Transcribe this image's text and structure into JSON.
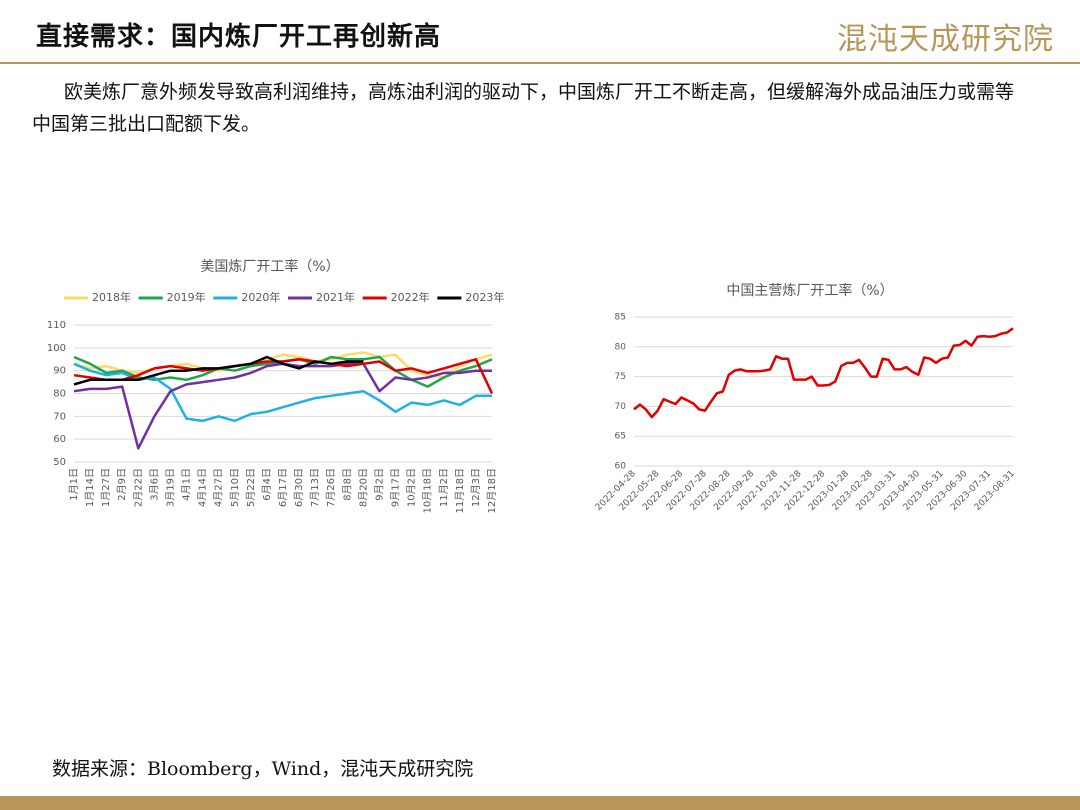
{
  "header": {
    "title": "直接需求：国内炼厂开工再创新高",
    "logo": "混沌天成研究院"
  },
  "body": {
    "paragraph": "欧美炼厂意外频发导致高利润维持，高炼油利润的驱动下，中国炼厂开工不断走高，但缓解海外成品油压力或需等中国第三批出口配额下发。"
  },
  "source": "数据来源：Bloomberg，Wind，混沌天成研究院",
  "chart_data": [
    {
      "type": "line",
      "title": "美国炼厂开工率（%）",
      "categories": [
        "1月1日",
        "1月14日",
        "1月27日",
        "2月9日",
        "2月22日",
        "3月6日",
        "3月19日",
        "4月1日",
        "4月14日",
        "4月27日",
        "5月10日",
        "5月22日",
        "6月4日",
        "6月17日",
        "6月30日",
        "7月13日",
        "7月26日",
        "8月8日",
        "8月20日",
        "9月2日",
        "9月17日",
        "10月2日",
        "10月18日",
        "11月2日",
        "11月18日",
        "12月3日",
        "12月18日"
      ],
      "series": [
        {
          "name": "2018年",
          "color": "#ffd966",
          "values": [
            93,
            91,
            92,
            90,
            89,
            91,
            92,
            93,
            91,
            90,
            92,
            93,
            95,
            97,
            96,
            94,
            95,
            97,
            98,
            96,
            97,
            90,
            88,
            87,
            92,
            95,
            97
          ]
        },
        {
          "name": "2019年",
          "color": "#1ea64b",
          "values": [
            96,
            93,
            89,
            90,
            87,
            86,
            87,
            86,
            88,
            91,
            90,
            92,
            93,
            94,
            95,
            93,
            96,
            95,
            95,
            96,
            90,
            86,
            83,
            87,
            90,
            92,
            95
          ]
        },
        {
          "name": "2020年",
          "color": "#1fb0e6",
          "values": [
            93,
            90,
            88,
            89,
            86,
            87,
            82,
            69,
            68,
            70,
            68,
            71,
            72,
            74,
            76,
            78,
            79,
            80,
            81,
            77,
            72,
            76,
            75,
            77,
            75,
            79,
            79
          ]
        },
        {
          "name": "2021年",
          "color": "#7030a0",
          "values": [
            81,
            82,
            82,
            83,
            56,
            70,
            81,
            84,
            85,
            86,
            87,
            89,
            92,
            93,
            92,
            92,
            92,
            93,
            93,
            81,
            87,
            86,
            87,
            89,
            89,
            90,
            90
          ]
        },
        {
          "name": "2022年",
          "color": "#e00000",
          "values": [
            88,
            87,
            86,
            86,
            88,
            91,
            92,
            91,
            90,
            91,
            92,
            93,
            94,
            94,
            95,
            94,
            93,
            92,
            93,
            94,
            90,
            91,
            89,
            91,
            93,
            95,
            80
          ]
        },
        {
          "name": "2023年",
          "color": "#000000",
          "values": [
            84,
            86,
            86,
            86,
            86,
            88,
            90,
            90,
            91,
            91,
            92,
            93,
            96,
            93,
            91,
            94,
            93,
            94,
            94,
            null,
            null,
            null,
            null,
            null,
            null,
            null,
            null
          ]
        }
      ],
      "ylim": [
        50,
        110
      ],
      "yticks": [
        50,
        60,
        70,
        80,
        90,
        100,
        110
      ],
      "grid": true,
      "legend": "top"
    },
    {
      "type": "line",
      "title": "中国主营炼厂开工率（%）",
      "categories": [
        "2022-04-28",
        null,
        null,
        null,
        "2022-05-28",
        null,
        null,
        null,
        "2022-06-28",
        null,
        null,
        null,
        "2022-07-28",
        null,
        null,
        null,
        "2022-08-28",
        null,
        null,
        null,
        "2022-09-28",
        null,
        null,
        null,
        "2022-10-28",
        null,
        null,
        null,
        "2022-11-28",
        null,
        null,
        null,
        "2022-12-28",
        null,
        null,
        null,
        "2023-01-28",
        null,
        null,
        null,
        "2023-02-28",
        null,
        null,
        null,
        "2023-03-31",
        null,
        null,
        null,
        "2023-04-30",
        null,
        null,
        null,
        "2023-05-31",
        null,
        null,
        null,
        "2023-06-30",
        null,
        null,
        null,
        "2023-07-31",
        null,
        null,
        null,
        "2023-08-31"
      ],
      "series": [
        {
          "name": "中国主营炼厂开工率",
          "color": "#e00000",
          "values": [
            69.5,
            70.3,
            69.5,
            68.2,
            69.3,
            71.2,
            70.8,
            70.4,
            71.5,
            71.0,
            70.5,
            69.5,
            69.3,
            70.8,
            72.2,
            72.5,
            75.3,
            76.0,
            76.2,
            75.9,
            75.9,
            75.9,
            76.0,
            76.2,
            78.4,
            78.0,
            78.0,
            74.5,
            74.5,
            74.5,
            75.0,
            73.5,
            73.5,
            73.6,
            74.2,
            76.8,
            77.3,
            77.3,
            77.8,
            76.5,
            75.0,
            75.0,
            78.0,
            77.8,
            76.2,
            76.2,
            76.6,
            75.8,
            75.3,
            78.2,
            78.0,
            77.3,
            78.0,
            78.2,
            80.2,
            80.3,
            81.0,
            80.2,
            81.7,
            81.8,
            81.7,
            81.8,
            82.2,
            82.4,
            83.1
          ]
        }
      ],
      "ylim": [
        60,
        85
      ],
      "yticks": [
        60,
        65,
        70,
        75,
        80,
        85
      ],
      "grid": true
    }
  ]
}
